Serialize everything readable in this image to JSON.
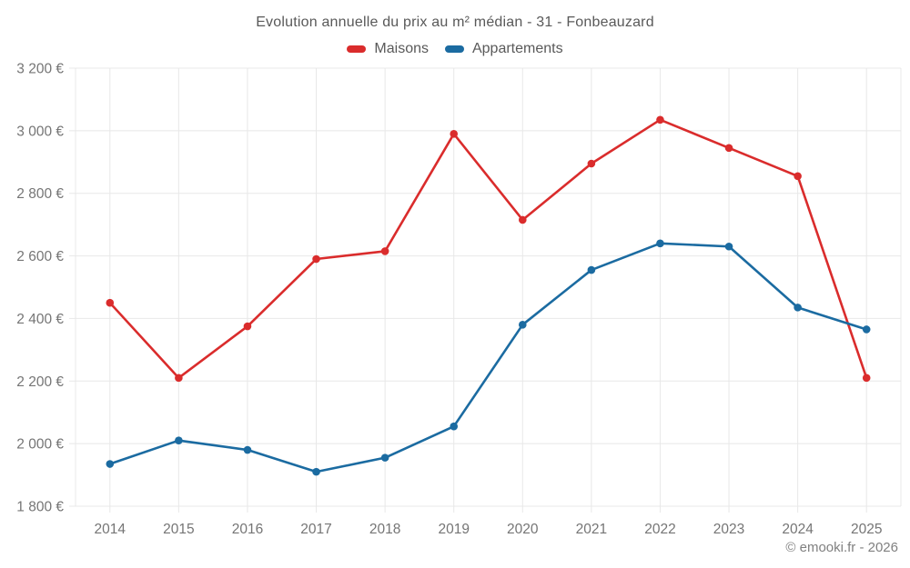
{
  "chart_data": {
    "type": "line",
    "title": "Evolution annuelle du prix au m² médian - 31 - Fonbeauzard",
    "categories": [
      "2014",
      "2015",
      "2016",
      "2017",
      "2018",
      "2019",
      "2020",
      "2021",
      "2022",
      "2023",
      "2024",
      "2025"
    ],
    "series": [
      {
        "name": "Maisons",
        "color": "#da2c2c",
        "values": [
          2450,
          2210,
          2375,
          2590,
          2615,
          2990,
          2715,
          2895,
          3035,
          2945,
          2855,
          2210
        ]
      },
      {
        "name": "Appartements",
        "color": "#1b6ba1",
        "values": [
          1935,
          2010,
          1980,
          1910,
          1955,
          2055,
          2380,
          2555,
          2640,
          2630,
          2435,
          2365
        ]
      }
    ],
    "xlabel": "",
    "ylabel": "",
    "ylim": [
      1800,
      3200
    ],
    "ytick_step": 200,
    "ytick_labels": [
      "1 800 €",
      "2 000 €",
      "2 200 €",
      "2 400 €",
      "2 600 €",
      "2 800 €",
      "3 000 €",
      "3 200 €"
    ],
    "grid": true,
    "legend_position": "top",
    "grid_color": "#e8e8e8",
    "axis_text_color": "#757575",
    "watermark": "© emooki.fr - 2026"
  }
}
